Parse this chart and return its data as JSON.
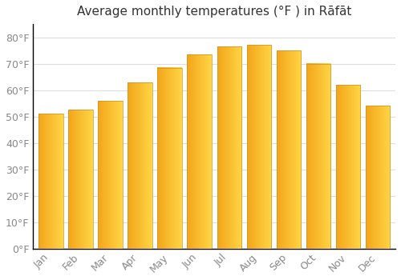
{
  "title": "Average monthly temperatures (°F ) in Rāfāt",
  "months": [
    "Jan",
    "Feb",
    "Mar",
    "Apr",
    "May",
    "Jun",
    "Jul",
    "Aug",
    "Sep",
    "Oct",
    "Nov",
    "Dec"
  ],
  "values": [
    51,
    52.5,
    56,
    63,
    68.5,
    73.5,
    76.5,
    77,
    75,
    70,
    62,
    54
  ],
  "bar_color_left": "#F5A623",
  "bar_color_right": "#FFD060",
  "bar_edge_color": "#C8922A",
  "background_color": "#FFFFFF",
  "grid_color": "#DDDDDD",
  "ylabel_ticks": [
    "0°F",
    "10°F",
    "20°F",
    "30°F",
    "40°F",
    "50°F",
    "60°F",
    "70°F",
    "80°F"
  ],
  "ytick_values": [
    0,
    10,
    20,
    30,
    40,
    50,
    60,
    70,
    80
  ],
  "ylim": [
    0,
    85
  ],
  "title_fontsize": 11,
  "tick_fontsize": 9,
  "tick_color": "#888888"
}
